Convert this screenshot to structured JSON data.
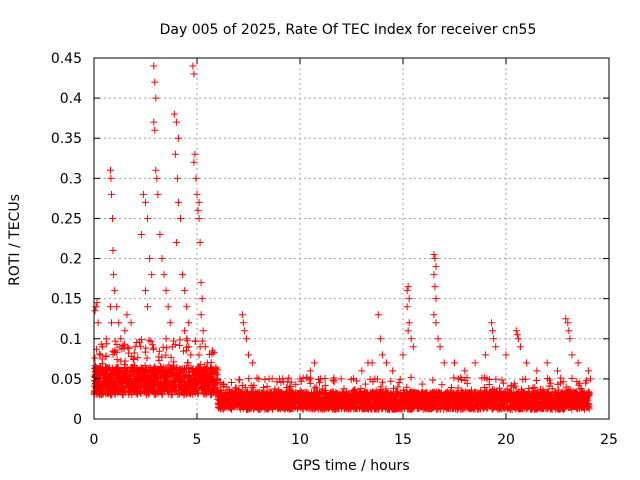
{
  "chart_data": {
    "type": "scatter",
    "title": "Day 005 of 2025, Rate Of TEC Index for receiver cn55",
    "xlabel": "GPS time / hours",
    "ylabel": "ROTI / TECUs",
    "xlim": [
      0,
      25
    ],
    "ylim": [
      0,
      0.45
    ],
    "x_ticks": [
      0,
      5,
      10,
      15,
      20,
      25
    ],
    "x_tick_labels": [
      "0",
      "5",
      "10",
      "15",
      "20",
      "25"
    ],
    "y_ticks": [
      0,
      0.05,
      0.1,
      0.15,
      0.2,
      0.25,
      0.3,
      0.35,
      0.4,
      0.45
    ],
    "y_tick_labels": [
      "0",
      "0.05",
      "0.1",
      "0.15",
      "0.2",
      "0.25",
      "0.3",
      "0.35",
      "0.4",
      "0.45"
    ],
    "grid": true,
    "marker": "+",
    "color": "#ff0000",
    "series": [
      {
        "name": "ROTI",
        "points": [
          [
            0.05,
            0.135
          ],
          [
            0.1,
            0.14
          ],
          [
            0.15,
            0.145
          ],
          [
            0.2,
            0.12
          ],
          [
            0.3,
            0.08
          ],
          [
            0.4,
            0.06
          ],
          [
            0.5,
            0.05
          ],
          [
            0.6,
            0.045
          ],
          [
            0.8,
            0.31
          ],
          [
            0.82,
            0.3
          ],
          [
            0.85,
            0.28
          ],
          [
            0.9,
            0.25
          ],
          [
            0.92,
            0.21
          ],
          [
            0.95,
            0.18
          ],
          [
            0.8,
            0.14
          ],
          [
            0.85,
            0.12
          ],
          [
            1.0,
            0.16
          ],
          [
            1.1,
            0.14
          ],
          [
            1.2,
            0.12
          ],
          [
            1.3,
            0.1
          ],
          [
            1.5,
            0.11
          ],
          [
            1.6,
            0.13
          ],
          [
            1.8,
            0.12
          ],
          [
            2.0,
            0.09
          ],
          [
            2.3,
            0.23
          ],
          [
            2.4,
            0.28
          ],
          [
            2.5,
            0.27
          ],
          [
            2.6,
            0.25
          ],
          [
            2.7,
            0.2
          ],
          [
            2.8,
            0.18
          ],
          [
            2.5,
            0.16
          ],
          [
            2.6,
            0.14
          ],
          [
            2.9,
            0.44
          ],
          [
            2.95,
            0.42
          ],
          [
            3.0,
            0.4
          ],
          [
            2.9,
            0.37
          ],
          [
            2.95,
            0.36
          ],
          [
            3.0,
            0.31
          ],
          [
            3.05,
            0.3
          ],
          [
            3.1,
            0.28
          ],
          [
            3.2,
            0.23
          ],
          [
            3.3,
            0.2
          ],
          [
            3.4,
            0.18
          ],
          [
            3.5,
            0.16
          ],
          [
            3.6,
            0.14
          ],
          [
            3.7,
            0.12
          ],
          [
            3.5,
            0.1
          ],
          [
            3.8,
            0.09
          ],
          [
            3.9,
            0.38
          ],
          [
            4.0,
            0.37
          ],
          [
            4.1,
            0.35
          ],
          [
            3.95,
            0.33
          ],
          [
            4.05,
            0.3
          ],
          [
            4.1,
            0.27
          ],
          [
            4.2,
            0.25
          ],
          [
            4.0,
            0.22
          ],
          [
            4.3,
            0.18
          ],
          [
            4.4,
            0.16
          ],
          [
            4.5,
            0.14
          ],
          [
            4.6,
            0.12
          ],
          [
            4.4,
            0.11
          ],
          [
            4.5,
            0.1
          ],
          [
            4.6,
            0.09
          ],
          [
            4.7,
            0.08
          ],
          [
            4.8,
            0.44
          ],
          [
            4.85,
            0.43
          ],
          [
            4.9,
            0.33
          ],
          [
            4.85,
            0.32
          ],
          [
            4.95,
            0.3
          ],
          [
            5.0,
            0.28
          ],
          [
            5.1,
            0.27
          ],
          [
            5.05,
            0.26
          ],
          [
            5.1,
            0.25
          ],
          [
            5.15,
            0.22
          ],
          [
            5.2,
            0.17
          ],
          [
            5.25,
            0.15
          ],
          [
            5.2,
            0.13
          ],
          [
            5.3,
            0.11
          ],
          [
            5.4,
            0.09
          ],
          [
            5.5,
            0.07
          ],
          [
            7.2,
            0.13
          ],
          [
            7.25,
            0.12
          ],
          [
            7.3,
            0.11
          ],
          [
            7.4,
            0.1
          ],
          [
            7.5,
            0.08
          ],
          [
            7.7,
            0.07
          ],
          [
            8.0,
            0.05
          ],
          [
            8.5,
            0.05
          ],
          [
            9.0,
            0.05
          ],
          [
            9.5,
            0.04
          ],
          [
            10.0,
            0.05
          ],
          [
            10.5,
            0.06
          ],
          [
            10.7,
            0.07
          ],
          [
            11.0,
            0.05
          ],
          [
            12.0,
            0.05
          ],
          [
            13.0,
            0.06
          ],
          [
            13.3,
            0.07
          ],
          [
            13.5,
            0.07
          ],
          [
            13.8,
            0.13
          ],
          [
            13.9,
            0.1
          ],
          [
            14.0,
            0.08
          ],
          [
            14.2,
            0.07
          ],
          [
            14.5,
            0.06
          ],
          [
            15.0,
            0.08
          ],
          [
            15.2,
            0.16
          ],
          [
            15.25,
            0.165
          ],
          [
            15.3,
            0.15
          ],
          [
            15.2,
            0.14
          ],
          [
            15.3,
            0.12
          ],
          [
            15.25,
            0.11
          ],
          [
            15.4,
            0.1
          ],
          [
            15.5,
            0.09
          ],
          [
            16.5,
            0.205
          ],
          [
            16.55,
            0.2
          ],
          [
            16.6,
            0.19
          ],
          [
            16.5,
            0.18
          ],
          [
            16.55,
            0.165
          ],
          [
            16.6,
            0.15
          ],
          [
            16.5,
            0.13
          ],
          [
            16.6,
            0.12
          ],
          [
            16.7,
            0.1
          ],
          [
            16.8,
            0.09
          ],
          [
            17.0,
            0.07
          ],
          [
            17.5,
            0.07
          ],
          [
            18.0,
            0.06
          ],
          [
            18.5,
            0.07
          ],
          [
            19.0,
            0.08
          ],
          [
            19.3,
            0.12
          ],
          [
            19.35,
            0.11
          ],
          [
            19.4,
            0.1
          ],
          [
            19.5,
            0.09
          ],
          [
            20.0,
            0.08
          ],
          [
            20.5,
            0.11
          ],
          [
            20.55,
            0.105
          ],
          [
            20.6,
            0.1
          ],
          [
            20.7,
            0.09
          ],
          [
            21.0,
            0.07
          ],
          [
            21.5,
            0.06
          ],
          [
            22.0,
            0.07
          ],
          [
            22.5,
            0.06
          ],
          [
            22.9,
            0.125
          ],
          [
            23.0,
            0.12
          ],
          [
            23.05,
            0.11
          ],
          [
            23.1,
            0.1
          ],
          [
            23.2,
            0.08
          ],
          [
            23.5,
            0.07
          ],
          [
            24.0,
            0.06
          ],
          [
            24.1,
            0.05
          ]
        ]
      }
    ]
  }
}
